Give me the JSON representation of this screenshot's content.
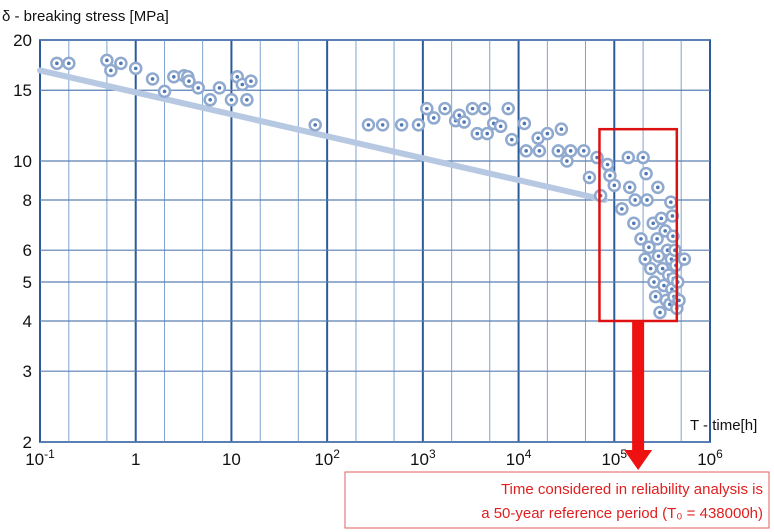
{
  "chart_data": {
    "type": "scatter",
    "title": "",
    "ylabel": "δ - breaking stress [MPa]",
    "xlabel": "T - time[h]",
    "x_scale": "log",
    "y_scale": "log",
    "xlim": [
      0.1,
      1000000
    ],
    "ylim": [
      2,
      20
    ],
    "grid": true,
    "x_ticks": [
      {
        "value": 0.1,
        "base": "10",
        "exp": "-1"
      },
      {
        "value": 1,
        "base": "1",
        "exp": ""
      },
      {
        "value": 10,
        "base": "10",
        "exp": ""
      },
      {
        "value": 100,
        "base": "10",
        "exp": "2"
      },
      {
        "value": 1000,
        "base": "10",
        "exp": "3"
      },
      {
        "value": 10000,
        "base": "10",
        "exp": "4"
      },
      {
        "value": 100000,
        "base": "10",
        "exp": "5"
      },
      {
        "value": 1000000,
        "base": "10",
        "exp": "6"
      }
    ],
    "y_ticks": [
      {
        "value": 20,
        "label": "20"
      },
      {
        "value": 15,
        "label": "15"
      },
      {
        "value": 10,
        "label": "10"
      },
      {
        "value": 8,
        "label": "8"
      },
      {
        "value": 6,
        "label": "6"
      },
      {
        "value": 5,
        "label": "5"
      },
      {
        "value": 4,
        "label": "4"
      },
      {
        "value": 3,
        "label": "3"
      },
      {
        "value": 2,
        "label": "2"
      }
    ],
    "trend_line": {
      "x": [
        0.1,
        80000
      ],
      "y": [
        16.8,
        8.0
      ]
    },
    "highlight_region": {
      "x": [
        70000,
        450000
      ],
      "y": [
        4.0,
        12.0
      ]
    },
    "annotation": {
      "lines": [
        "Time considered in reliability analysis is",
        "a 50-year reference period (T₀ = 438000h)"
      ]
    },
    "points": [
      [
        0.15,
        17.5
      ],
      [
        0.2,
        17.5
      ],
      [
        0.5,
        17.8
      ],
      [
        0.55,
        16.8
      ],
      [
        0.7,
        17.5
      ],
      [
        1.0,
        17.0
      ],
      [
        1.5,
        16.0
      ],
      [
        2.0,
        14.9
      ],
      [
        2.5,
        16.2
      ],
      [
        3.2,
        16.3
      ],
      [
        3.5,
        16.2
      ],
      [
        3.6,
        15.8
      ],
      [
        4.5,
        15.2
      ],
      [
        6.0,
        14.2
      ],
      [
        7.5,
        15.2
      ],
      [
        10,
        14.2
      ],
      [
        11.5,
        16.2
      ],
      [
        13,
        15.5
      ],
      [
        14.5,
        14.2
      ],
      [
        16,
        15.8
      ],
      [
        75,
        12.3
      ],
      [
        270,
        12.3
      ],
      [
        380,
        12.3
      ],
      [
        600,
        12.3
      ],
      [
        900,
        12.3
      ],
      [
        1100,
        13.5
      ],
      [
        1300,
        12.8
      ],
      [
        1700,
        13.5
      ],
      [
        2200,
        12.6
      ],
      [
        2400,
        13.0
      ],
      [
        2700,
        12.5
      ],
      [
        3300,
        13.5
      ],
      [
        3700,
        11.7
      ],
      [
        4400,
        13.5
      ],
      [
        4700,
        11.7
      ],
      [
        5500,
        12.4
      ],
      [
        6500,
        12.2
      ],
      [
        7800,
        13.5
      ],
      [
        8500,
        11.3
      ],
      [
        11500,
        12.4
      ],
      [
        12000,
        10.6
      ],
      [
        16000,
        11.4
      ],
      [
        16500,
        10.6
      ],
      [
        20000,
        11.7
      ],
      [
        26000,
        10.6
      ],
      [
        28000,
        12.0
      ],
      [
        32000,
        10.0
      ],
      [
        35000,
        10.6
      ],
      [
        48000,
        10.6
      ],
      [
        55000,
        9.1
      ],
      [
        66000,
        10.2
      ],
      [
        72000,
        8.2
      ],
      [
        85000,
        9.8
      ],
      [
        90000,
        9.2
      ],
      [
        100000,
        8.7
      ],
      [
        120000,
        7.6
      ],
      [
        140000,
        10.2
      ],
      [
        145000,
        8.6
      ],
      [
        160000,
        7.0
      ],
      [
        165000,
        8.0
      ],
      [
        190000,
        6.4
      ],
      [
        200000,
        10.2
      ],
      [
        210000,
        5.7
      ],
      [
        215000,
        9.3
      ],
      [
        220000,
        8.0
      ],
      [
        230000,
        6.1
      ],
      [
        240000,
        5.4
      ],
      [
        255000,
        7.0
      ],
      [
        260000,
        5.0
      ],
      [
        270000,
        4.6
      ],
      [
        280000,
        6.4
      ],
      [
        285000,
        8.6
      ],
      [
        290000,
        5.8
      ],
      [
        300000,
        4.2
      ],
      [
        310000,
        7.2
      ],
      [
        320000,
        5.4
      ],
      [
        330000,
        4.9
      ],
      [
        340000,
        6.7
      ],
      [
        350000,
        4.5
      ],
      [
        360000,
        6.0
      ],
      [
        370000,
        5.2
      ],
      [
        380000,
        4.4
      ],
      [
        390000,
        7.9
      ],
      [
        395000,
        5.7
      ],
      [
        400000,
        4.8
      ],
      [
        405000,
        7.3
      ],
      [
        410000,
        6.5
      ],
      [
        415000,
        5.1
      ],
      [
        420000,
        4.6
      ],
      [
        430000,
        6.0
      ],
      [
        440000,
        5.5
      ],
      [
        450000,
        4.3
      ],
      [
        460000,
        5.0
      ],
      [
        475000,
        4.5
      ],
      [
        540000,
        5.7
      ]
    ]
  }
}
